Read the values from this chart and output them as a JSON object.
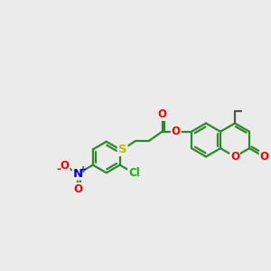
{
  "bg_color": "#ebebeb",
  "bond_color": "#2a8a2a",
  "bond_width": 1.6,
  "atom_colors": {
    "O": "#ff0000",
    "N": "#0000dd",
    "S": "#bbbb00",
    "Cl": "#00bb00",
    "C": "#333333"
  },
  "font_size": 8.5,
  "fig_size": [
    3.0,
    3.0
  ],
  "dpi": 100,
  "xlim": [
    0,
    12
  ],
  "ylim": [
    1,
    9
  ]
}
